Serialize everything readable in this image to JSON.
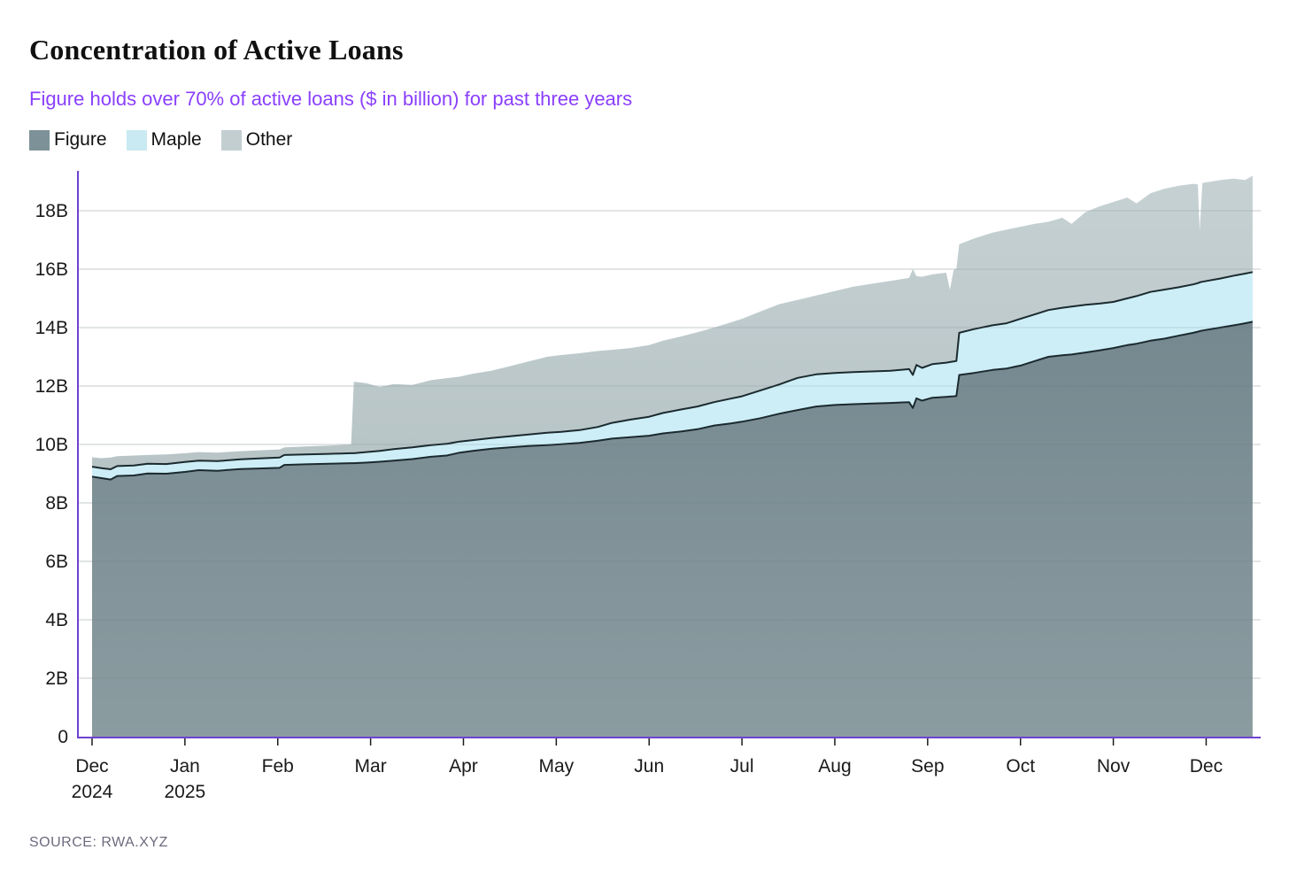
{
  "header": {
    "title": "Concentration of Active Loans",
    "subtitle": "Figure holds over 70% of active loans ($ in billion) for past three years"
  },
  "legend": {
    "position": "top-left",
    "items": [
      {
        "label": "Figure",
        "color": "#7d9298"
      },
      {
        "label": "Maple",
        "color": "#c9eaf2"
      },
      {
        "label": "Other",
        "color": "#c2ced0"
      }
    ]
  },
  "footer": {
    "source": "SOURCE: RWA.XYZ"
  },
  "colors": {
    "axis_purple": "#6f42d0",
    "subtitle_purple": "#8a3ffc",
    "boundary_stroke": "#1b2a2f",
    "figure_fill_top": "#75888f",
    "figure_fill_bottom": "#8b9ca1",
    "maple_fill": "#cdeef6",
    "other_fill_top": "#c6d1d3",
    "other_fill_bottom": "#b7c4c6",
    "grid_under": "#e1e5e6",
    "grid_over": "rgba(100,115,118,0.22)",
    "tick_mark": "#1b1b1b",
    "tick_text": "#1a1a1a",
    "source_text": "#6d6b7e"
  },
  "chart_data": {
    "type": "area",
    "stacked": true,
    "title": "Concentration of Active Loans",
    "subtitle": "Figure holds over 70% of active loans ($ in billion) for past three years",
    "xlabel": "",
    "ylabel": "",
    "unit": "USD billions",
    "grid": true,
    "legend_entries": [
      "Figure",
      "Maple",
      "Other"
    ],
    "x_axis": {
      "tick_labels": [
        "Dec",
        "Jan",
        "Feb",
        "Mar",
        "Apr",
        "May",
        "Jun",
        "Jul",
        "Aug",
        "Sep",
        "Oct",
        "Nov",
        "Dec"
      ],
      "year_labels": [
        {
          "tick": 0,
          "label": "2024"
        },
        {
          "tick": 1,
          "label": "2025"
        }
      ],
      "range_months": [
        0,
        12.5
      ]
    },
    "y_axis": {
      "tick_values": [
        0,
        2,
        4,
        6,
        8,
        10,
        12,
        14,
        16,
        18
      ],
      "tick_labels": [
        "0",
        "2B",
        "4B",
        "6B",
        "8B",
        "10B",
        "12B",
        "14B",
        "16B",
        "18B"
      ],
      "min": 0,
      "max": 19.4
    },
    "samples_format": [
      "month_index_from_Dec_2024",
      "figure_top_B",
      "figure_plus_maple_top_B",
      "total_top_B"
    ],
    "samples": [
      [
        0.0,
        8.9,
        9.24,
        9.56
      ],
      [
        0.1,
        8.85,
        9.19,
        9.53
      ],
      [
        0.2,
        8.8,
        9.15,
        9.55
      ],
      [
        0.27,
        8.92,
        9.26,
        9.6
      ],
      [
        0.45,
        8.94,
        9.28,
        9.62
      ],
      [
        0.6,
        9.01,
        9.34,
        9.64
      ],
      [
        0.8,
        9.0,
        9.33,
        9.66
      ],
      [
        1.0,
        9.06,
        9.4,
        9.7
      ],
      [
        1.15,
        9.12,
        9.45,
        9.74
      ],
      [
        1.35,
        9.1,
        9.43,
        9.72
      ],
      [
        1.6,
        9.16,
        9.49,
        9.77
      ],
      [
        1.8,
        9.18,
        9.52,
        9.8
      ],
      [
        2.02,
        9.2,
        9.55,
        9.83
      ],
      [
        2.07,
        9.3,
        9.64,
        9.9
      ],
      [
        2.3,
        9.32,
        9.66,
        9.93
      ],
      [
        2.55,
        9.34,
        9.68,
        9.96
      ],
      [
        2.79,
        9.36,
        9.7,
        10.0
      ],
      [
        2.82,
        9.36,
        9.7,
        12.15
      ],
      [
        2.95,
        9.38,
        9.74,
        12.1
      ],
      [
        3.1,
        9.41,
        9.78,
        11.97
      ],
      [
        3.25,
        9.45,
        9.84,
        12.07
      ],
      [
        3.45,
        9.5,
        9.9,
        12.04
      ],
      [
        3.65,
        9.58,
        9.98,
        12.2
      ],
      [
        3.82,
        9.62,
        10.02,
        12.27
      ],
      [
        3.96,
        9.72,
        10.1,
        12.32
      ],
      [
        4.1,
        9.78,
        10.15,
        12.42
      ],
      [
        4.3,
        9.85,
        10.22,
        12.52
      ],
      [
        4.5,
        9.9,
        10.28,
        12.68
      ],
      [
        4.7,
        9.95,
        10.34,
        12.84
      ],
      [
        4.9,
        9.98,
        10.4,
        13.0
      ],
      [
        5.05,
        10.01,
        10.43,
        13.06
      ],
      [
        5.25,
        10.05,
        10.49,
        13.12
      ],
      [
        5.45,
        10.13,
        10.6,
        13.2
      ],
      [
        5.6,
        10.2,
        10.74,
        13.24
      ],
      [
        5.8,
        10.25,
        10.85,
        13.3
      ],
      [
        6.0,
        10.3,
        10.95,
        13.4
      ],
      [
        6.15,
        10.38,
        11.08,
        13.55
      ],
      [
        6.35,
        10.45,
        11.2,
        13.7
      ],
      [
        6.52,
        10.52,
        11.3,
        13.84
      ],
      [
        6.7,
        10.65,
        11.45,
        14.0
      ],
      [
        6.88,
        10.72,
        11.57,
        14.18
      ],
      [
        7.0,
        10.78,
        11.65,
        14.3
      ],
      [
        7.2,
        10.9,
        11.85,
        14.55
      ],
      [
        7.4,
        11.05,
        12.05,
        14.8
      ],
      [
        7.6,
        11.18,
        12.28,
        14.95
      ],
      [
        7.8,
        11.3,
        12.4,
        15.1
      ],
      [
        8.0,
        11.35,
        12.45,
        15.25
      ],
      [
        8.2,
        11.38,
        12.48,
        15.4
      ],
      [
        8.4,
        11.4,
        12.5,
        15.5
      ],
      [
        8.6,
        11.42,
        12.52,
        15.6
      ],
      [
        8.8,
        11.45,
        12.58,
        15.7
      ],
      [
        8.84,
        11.25,
        12.38,
        16.0
      ],
      [
        8.88,
        11.58,
        12.72,
        15.76
      ],
      [
        8.94,
        11.5,
        12.62,
        15.74
      ],
      [
        9.05,
        11.6,
        12.75,
        15.82
      ],
      [
        9.2,
        11.63,
        12.8,
        15.88
      ],
      [
        9.24,
        11.64,
        12.82,
        15.3
      ],
      [
        9.28,
        11.65,
        12.84,
        15.97
      ],
      [
        9.31,
        11.66,
        12.86,
        16.02
      ],
      [
        9.34,
        12.38,
        13.82,
        16.85
      ],
      [
        9.5,
        12.45,
        13.95,
        17.05
      ],
      [
        9.7,
        12.55,
        14.08,
        17.25
      ],
      [
        9.85,
        12.6,
        14.15,
        17.35
      ],
      [
        10.0,
        12.7,
        14.3,
        17.45
      ],
      [
        10.15,
        12.85,
        14.45,
        17.55
      ],
      [
        10.3,
        13.0,
        14.6,
        17.62
      ],
      [
        10.45,
        13.05,
        14.68,
        17.76
      ],
      [
        10.55,
        13.08,
        14.72,
        17.55
      ],
      [
        10.7,
        13.15,
        14.78,
        17.95
      ],
      [
        10.85,
        13.22,
        14.82,
        18.15
      ],
      [
        11.0,
        13.3,
        14.88,
        18.3
      ],
      [
        11.15,
        13.4,
        15.0,
        18.45
      ],
      [
        11.25,
        13.45,
        15.08,
        18.25
      ],
      [
        11.4,
        13.55,
        15.22,
        18.6
      ],
      [
        11.55,
        13.62,
        15.3,
        18.75
      ],
      [
        11.7,
        13.72,
        15.38,
        18.85
      ],
      [
        11.86,
        13.82,
        15.48,
        18.92
      ],
      [
        11.91,
        13.86,
        15.52,
        18.9
      ],
      [
        11.93,
        13.88,
        15.55,
        17.3
      ],
      [
        11.96,
        13.9,
        15.57,
        18.95
      ],
      [
        12.15,
        14.0,
        15.68,
        19.05
      ],
      [
        12.3,
        14.08,
        15.78,
        19.1
      ],
      [
        12.42,
        14.15,
        15.85,
        19.05
      ],
      [
        12.5,
        14.2,
        15.9,
        19.2
      ]
    ]
  }
}
